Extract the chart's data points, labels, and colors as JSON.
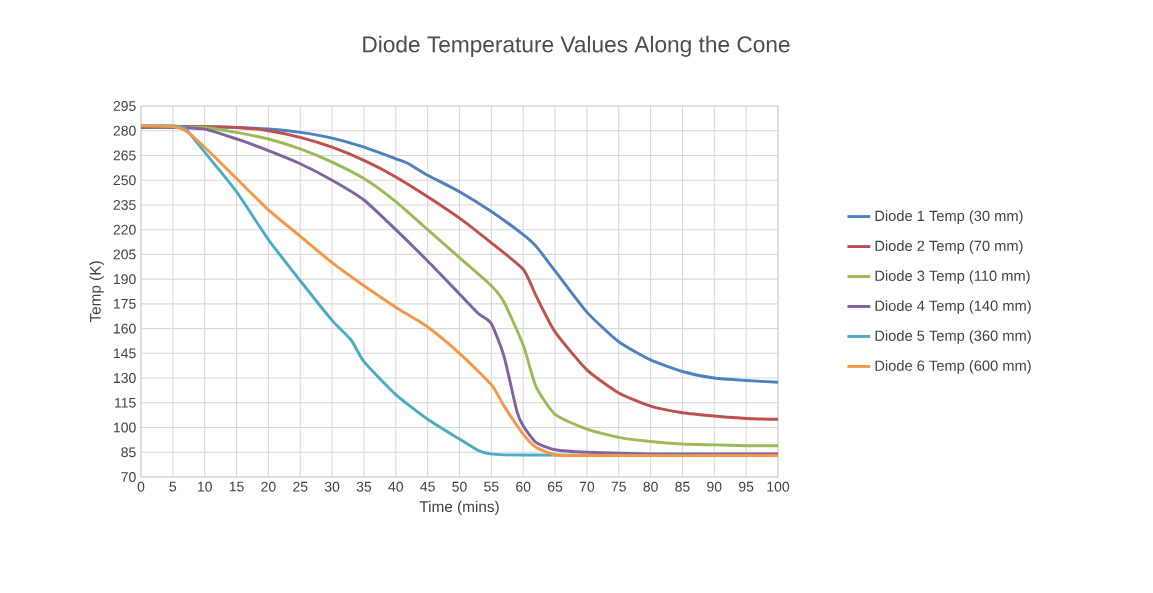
{
  "chart_data": {
    "type": "line",
    "title": "Diode Temperature Values Along the Cone",
    "xlabel": "Time (mins)",
    "ylabel": "Temp (K)",
    "xlim": [
      0,
      100
    ],
    "ylim": [
      70,
      295
    ],
    "xticks": [
      0,
      5,
      10,
      15,
      20,
      25,
      30,
      35,
      40,
      45,
      50,
      55,
      60,
      65,
      70,
      75,
      80,
      85,
      90,
      95,
      100
    ],
    "yticks": [
      70,
      85,
      100,
      115,
      130,
      145,
      160,
      175,
      190,
      205,
      220,
      235,
      250,
      265,
      280,
      295
    ],
    "grid": true,
    "legend": "right",
    "series": [
      {
        "name": "Diode 1 Temp (30 mm)",
        "color": "#4f81bd",
        "x": [
          0,
          5,
          10,
          15,
          20,
          25,
          30,
          35,
          40,
          42,
          45,
          50,
          55,
          60,
          62,
          65,
          70,
          75,
          80,
          85,
          90,
          95,
          100
        ],
        "values": [
          282,
          282.5,
          282.5,
          282,
          281,
          279,
          275.5,
          270,
          263,
          260,
          253,
          243,
          231,
          217,
          210,
          195,
          170,
          152,
          141,
          134,
          130,
          128.5,
          127.5
        ]
      },
      {
        "name": "Diode 2 Temp (70 mm)",
        "color": "#c0504d",
        "x": [
          0,
          5,
          10,
          15,
          20,
          25,
          30,
          35,
          40,
          45,
          50,
          55,
          60,
          62,
          65,
          70,
          75,
          80,
          85,
          90,
          95,
          100
        ],
        "values": [
          282,
          282.5,
          282.5,
          282,
          280,
          276,
          270,
          262,
          252,
          240,
          227,
          212,
          196,
          180,
          158,
          135,
          121,
          113,
          109,
          107,
          105.5,
          105
        ]
      },
      {
        "name": "Diode 3 Temp (110 mm)",
        "color": "#9bbb59",
        "x": [
          0,
          5,
          10,
          15,
          20,
          25,
          30,
          35,
          40,
          45,
          50,
          55,
          57,
          60,
          62,
          65,
          70,
          75,
          80,
          85,
          90,
          95,
          100
        ],
        "values": [
          282,
          282,
          282,
          279,
          275,
          269,
          261,
          251,
          237,
          220,
          203,
          186,
          176,
          150,
          125,
          108,
          99,
          94,
          91.5,
          90,
          89.5,
          89,
          89
        ]
      },
      {
        "name": "Diode 4 Temp (140 mm)",
        "color": "#8064a2",
        "x": [
          0,
          5,
          10,
          15,
          20,
          25,
          30,
          35,
          40,
          45,
          50,
          53,
          55,
          57,
          59,
          60,
          62,
          65,
          70,
          80,
          100
        ],
        "values": [
          282,
          282,
          281,
          275,
          268,
          260,
          250,
          238,
          220,
          201,
          181,
          169,
          163,
          143,
          110,
          101,
          91,
          86.5,
          85,
          84,
          84
        ]
      },
      {
        "name": "Diode 5 Temp (360 mm)",
        "color": "#4bacc6",
        "x": [
          0,
          5,
          7,
          10,
          15,
          20,
          25,
          30,
          33,
          35,
          40,
          45,
          50,
          53,
          55,
          60,
          100
        ],
        "values": [
          283,
          283,
          281,
          267,
          243,
          214,
          189,
          165,
          153,
          140,
          120,
          105,
          93,
          86,
          84,
          83.3,
          83
        ]
      },
      {
        "name": "Diode 6 Temp (600 mm)",
        "color": "#f79646",
        "x": [
          0,
          5,
          7,
          10,
          15,
          20,
          25,
          30,
          35,
          40,
          45,
          50,
          55,
          57,
          60,
          62,
          65,
          70,
          100
        ],
        "values": [
          283,
          282.5,
          280,
          270,
          251,
          232,
          216,
          200,
          186,
          173,
          161,
          145,
          126,
          113,
          96,
          88,
          83.5,
          83,
          83
        ]
      }
    ]
  }
}
